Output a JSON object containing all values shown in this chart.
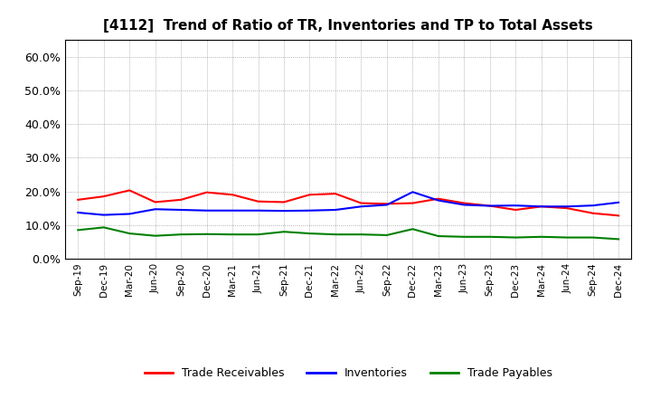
{
  "title": "[4112]  Trend of Ratio of TR, Inventories and TP to Total Assets",
  "x_labels": [
    "Sep-19",
    "Dec-19",
    "Mar-20",
    "Jun-20",
    "Sep-20",
    "Dec-20",
    "Mar-21",
    "Jun-21",
    "Sep-21",
    "Dec-21",
    "Mar-22",
    "Jun-22",
    "Sep-22",
    "Dec-22",
    "Mar-23",
    "Jun-23",
    "Sep-23",
    "Dec-23",
    "Mar-24",
    "Jun-24",
    "Sep-24",
    "Dec-24"
  ],
  "trade_receivables": [
    0.175,
    0.185,
    0.203,
    0.168,
    0.175,
    0.197,
    0.19,
    0.17,
    0.168,
    0.19,
    0.193,
    0.165,
    0.163,
    0.165,
    0.178,
    0.165,
    0.157,
    0.145,
    0.155,
    0.15,
    0.135,
    0.128
  ],
  "inventories": [
    0.137,
    0.13,
    0.133,
    0.147,
    0.145,
    0.143,
    0.143,
    0.143,
    0.142,
    0.143,
    0.145,
    0.155,
    0.16,
    0.198,
    0.173,
    0.16,
    0.157,
    0.158,
    0.155,
    0.155,
    0.158,
    0.167
  ],
  "trade_payables": [
    0.085,
    0.093,
    0.075,
    0.068,
    0.072,
    0.073,
    0.072,
    0.072,
    0.08,
    0.075,
    0.072,
    0.072,
    0.07,
    0.088,
    0.067,
    0.065,
    0.065,
    0.063,
    0.065,
    0.063,
    0.063,
    0.058
  ],
  "ylim": [
    0.0,
    0.65
  ],
  "yticks": [
    0.0,
    0.1,
    0.2,
    0.3,
    0.4,
    0.5,
    0.6
  ],
  "line_colors": {
    "trade_receivables": "#ff0000",
    "inventories": "#0000ff",
    "trade_payables": "#008000"
  },
  "legend_labels": [
    "Trade Receivables",
    "Inventories",
    "Trade Payables"
  ],
  "background_color": "#ffffff",
  "grid_color": "#aaaaaa"
}
